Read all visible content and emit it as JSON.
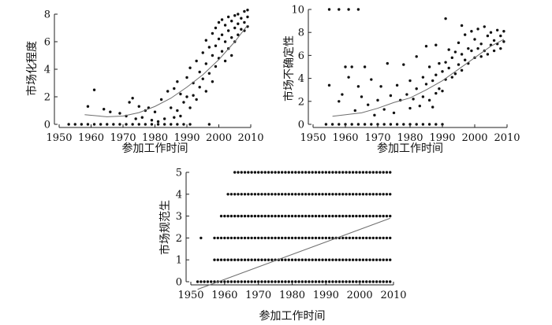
{
  "chart_data": [
    {
      "type": "scatter",
      "title": "",
      "xlabel": "参加工作时间",
      "ylabel": "市场化程度",
      "xlim": [
        1950,
        2010
      ],
      "ylim": [
        0,
        8
      ],
      "xticks": [
        "1950",
        "1960",
        "1970",
        "1980",
        "1990",
        "2000",
        "2010"
      ],
      "yticks": [
        "0",
        "2",
        "4",
        "6",
        "8"
      ],
      "trend": [
        [
          1958,
          0.7
        ],
        [
          1965,
          0.55
        ],
        [
          1970,
          0.6
        ],
        [
          1975,
          0.85
        ],
        [
          1980,
          1.3
        ],
        [
          1985,
          1.9
        ],
        [
          1990,
          2.7
        ],
        [
          1995,
          3.6
        ],
        [
          2000,
          4.7
        ],
        [
          2005,
          6.0
        ],
        [
          2009,
          7.2
        ]
      ],
      "points": [
        [
          1953,
          0
        ],
        [
          1955,
          0
        ],
        [
          1957,
          0
        ],
        [
          1959,
          0
        ],
        [
          1961,
          0
        ],
        [
          1963,
          0
        ],
        [
          1965,
          0
        ],
        [
          1967,
          0
        ],
        [
          1969,
          0
        ],
        [
          1971,
          0
        ],
        [
          1973,
          0
        ],
        [
          1975,
          0
        ],
        [
          1977,
          0
        ],
        [
          1979,
          0
        ],
        [
          1981,
          0
        ],
        [
          1983,
          0
        ],
        [
          1985,
          0
        ],
        [
          1987,
          0
        ],
        [
          1989,
          0
        ],
        [
          1991,
          0
        ],
        [
          1997,
          0
        ],
        [
          1959,
          1.3
        ],
        [
          1961,
          2.5
        ],
        [
          1964,
          1.1
        ],
        [
          1966,
          0.9
        ],
        [
          1969,
          0.8
        ],
        [
          1971,
          0.6
        ],
        [
          1972,
          1.6
        ],
        [
          1973,
          1.9
        ],
        [
          1974,
          0.4
        ],
        [
          1975,
          1.3
        ],
        [
          1976,
          0.5
        ],
        [
          1977,
          1.0
        ],
        [
          1978,
          1.2
        ],
        [
          1979,
          0.3
        ],
        [
          1980,
          0.9
        ],
        [
          1981,
          0.2
        ],
        [
          1982,
          1.8
        ],
        [
          1983,
          0.4
        ],
        [
          1984,
          2.4
        ],
        [
          1985,
          1.2
        ],
        [
          1986,
          2.6
        ],
        [
          1986,
          0.5
        ],
        [
          1987,
          3.1
        ],
        [
          1987,
          1.0
        ],
        [
          1988,
          2.2
        ],
        [
          1988,
          0.6
        ],
        [
          1989,
          1.6
        ],
        [
          1990,
          3.4
        ],
        [
          1990,
          2.0
        ],
        [
          1991,
          4.1
        ],
        [
          1991,
          1.2
        ],
        [
          1992,
          3.0
        ],
        [
          1992,
          2.1
        ],
        [
          1993,
          4.6
        ],
        [
          1993,
          1.8
        ],
        [
          1994,
          3.8
        ],
        [
          1994,
          2.7
        ],
        [
          1995,
          5.2
        ],
        [
          1995,
          3.3
        ],
        [
          1996,
          6.1
        ],
        [
          1996,
          4.4
        ],
        [
          1996,
          2.4
        ],
        [
          1997,
          5.6
        ],
        [
          1997,
          3.7
        ],
        [
          1998,
          6.6
        ],
        [
          1998,
          5.0
        ],
        [
          1998,
          3.1
        ],
        [
          1999,
          7.0
        ],
        [
          1999,
          5.7
        ],
        [
          1999,
          4.2
        ],
        [
          2000,
          7.4
        ],
        [
          2000,
          6.2
        ],
        [
          2000,
          4.8
        ],
        [
          2001,
          7.6
        ],
        [
          2001,
          6.5
        ],
        [
          2001,
          5.3
        ],
        [
          2002,
          7.2
        ],
        [
          2002,
          6.0
        ],
        [
          2002,
          4.6
        ],
        [
          2003,
          7.8
        ],
        [
          2003,
          6.8
        ],
        [
          2003,
          5.5
        ],
        [
          2004,
          7.5
        ],
        [
          2004,
          6.3
        ],
        [
          2004,
          5.0
        ],
        [
          2005,
          7.9
        ],
        [
          2005,
          7.0
        ],
        [
          2005,
          6.0
        ],
        [
          2006,
          8.0
        ],
        [
          2006,
          7.3
        ],
        [
          2006,
          6.5
        ],
        [
          2007,
          7.7
        ],
        [
          2007,
          6.9
        ],
        [
          2008,
          8.2
        ],
        [
          2008,
          7.4
        ],
        [
          2008,
          6.8
        ],
        [
          2009,
          7.8
        ],
        [
          2009,
          7.1
        ],
        [
          2009,
          8.3
        ]
      ]
    },
    {
      "type": "scatter",
      "title": "",
      "xlabel": "参加工作时间",
      "ylabel": "市场不确定性",
      "xlim": [
        1950,
        2010
      ],
      "ylim": [
        0,
        10
      ],
      "xticks": [
        "1950",
        "1960",
        "1970",
        "1980",
        "1990",
        "2000",
        "2010"
      ],
      "yticks": [
        "0",
        "2",
        "4",
        "6",
        "8",
        "10"
      ],
      "trend": [
        [
          1956,
          0.7
        ],
        [
          1965,
          1.0
        ],
        [
          1970,
          1.4
        ],
        [
          1975,
          1.9
        ],
        [
          1980,
          2.3
        ],
        [
          1985,
          3.0
        ],
        [
          1990,
          3.8
        ],
        [
          1995,
          4.8
        ],
        [
          2000,
          5.8
        ],
        [
          2005,
          6.8
        ],
        [
          2009,
          7.4
        ]
      ],
      "points": [
        [
          1955,
          10
        ],
        [
          1958,
          10
        ],
        [
          1961,
          10
        ],
        [
          1964,
          10
        ],
        [
          1954,
          0
        ],
        [
          1956,
          0
        ],
        [
          1958,
          0
        ],
        [
          1960,
          0
        ],
        [
          1962,
          0
        ],
        [
          1964,
          0
        ],
        [
          1966,
          0
        ],
        [
          1968,
          0
        ],
        [
          1970,
          0
        ],
        [
          1972,
          0
        ],
        [
          1974,
          0
        ],
        [
          1976,
          0
        ],
        [
          1978,
          0
        ],
        [
          1980,
          0
        ],
        [
          1982,
          0
        ],
        [
          1984,
          0
        ],
        [
          1986,
          0
        ],
        [
          1988,
          0
        ],
        [
          1990,
          0
        ],
        [
          1955,
          3.4
        ],
        [
          1958,
          2.0
        ],
        [
          1959,
          2.6
        ],
        [
          1960,
          5.0
        ],
        [
          1961,
          4.1
        ],
        [
          1962,
          5.0
        ],
        [
          1963,
          1.2
        ],
        [
          1964,
          3.3
        ],
        [
          1965,
          2.4
        ],
        [
          1966,
          5.0
        ],
        [
          1967,
          1.7
        ],
        [
          1968,
          3.9
        ],
        [
          1969,
          0.8
        ],
        [
          1970,
          2.1
        ],
        [
          1971,
          3.3
        ],
        [
          1972,
          1.3
        ],
        [
          1973,
          5.3
        ],
        [
          1974,
          2.5
        ],
        [
          1975,
          1.0
        ],
        [
          1976,
          3.4
        ],
        [
          1977,
          2.1
        ],
        [
          1978,
          5.2
        ],
        [
          1979,
          2.6
        ],
        [
          1980,
          1.4
        ],
        [
          1980,
          3.8
        ],
        [
          1981,
          2.2
        ],
        [
          1982,
          5.9
        ],
        [
          1982,
          3.1
        ],
        [
          1983,
          1.6
        ],
        [
          1984,
          4.1
        ],
        [
          1984,
          2.4
        ],
        [
          1985,
          6.8
        ],
        [
          1985,
          3.5
        ],
        [
          1986,
          2.1
        ],
        [
          1986,
          5.0
        ],
        [
          1987,
          3.8
        ],
        [
          1987,
          1.5
        ],
        [
          1988,
          6.9
        ],
        [
          1988,
          4.3
        ],
        [
          1988,
          2.7
        ],
        [
          1989,
          5.3
        ],
        [
          1989,
          3.1
        ],
        [
          1990,
          4.6
        ],
        [
          1990,
          2.9
        ],
        [
          1991,
          9.2
        ],
        [
          1991,
          5.4
        ],
        [
          1991,
          3.9
        ],
        [
          1992,
          4.9
        ],
        [
          1992,
          6.5
        ],
        [
          1993,
          5.8
        ],
        [
          1993,
          4.1
        ],
        [
          1994,
          6.3
        ],
        [
          1994,
          4.4
        ],
        [
          1995,
          7.1
        ],
        [
          1995,
          5.2
        ],
        [
          1996,
          8.6
        ],
        [
          1996,
          6.1
        ],
        [
          1996,
          4.7
        ],
        [
          1997,
          7.8
        ],
        [
          1997,
          5.6
        ],
        [
          1998,
          6.6
        ],
        [
          1998,
          5.3
        ],
        [
          1999,
          8.1
        ],
        [
          1999,
          6.4
        ],
        [
          2000,
          7.4
        ],
        [
          2000,
          5.8
        ],
        [
          2001,
          8.3
        ],
        [
          2001,
          6.6
        ],
        [
          2002,
          7.0
        ],
        [
          2002,
          5.9
        ],
        [
          2003,
          8.5
        ],
        [
          2003,
          6.4
        ],
        [
          2004,
          7.7
        ],
        [
          2004,
          6.1
        ],
        [
          2005,
          8.0
        ],
        [
          2005,
          6.9
        ],
        [
          2006,
          7.3
        ],
        [
          2006,
          6.4
        ],
        [
          2007,
          8.2
        ],
        [
          2007,
          7.0
        ],
        [
          2008,
          7.7
        ],
        [
          2008,
          6.6
        ],
        [
          2009,
          8.1
        ],
        [
          2009,
          7.2
        ]
      ]
    },
    {
      "type": "scatter",
      "title": "",
      "xlabel": "参加工作时间",
      "ylabel": "市场规范生",
      "xlim": [
        1950,
        2010
      ],
      "ylim": [
        0,
        5
      ],
      "xticks": [
        "1950",
        "1960",
        "1970",
        "1980",
        "1990",
        "2000",
        "2010"
      ],
      "yticks": [
        "0",
        "1",
        "2",
        "3",
        "4",
        "5"
      ],
      "trend": [
        [
          1952,
          -0.35
        ],
        [
          2009,
          2.9
        ]
      ],
      "rows": [
        {
          "y": 0,
          "from": 1952,
          "to": 2009
        },
        {
          "y": 1,
          "from": 1957,
          "to": 2009
        },
        {
          "y": 2,
          "from": 1957,
          "to": 2009
        },
        {
          "y": 3,
          "from": 1959,
          "to": 2009
        },
        {
          "y": 4,
          "from": 1961,
          "to": 2009
        },
        {
          "y": 5,
          "from": 1963,
          "to": 2009
        }
      ],
      "extra_points": [
        [
          1953,
          2
        ]
      ]
    }
  ]
}
